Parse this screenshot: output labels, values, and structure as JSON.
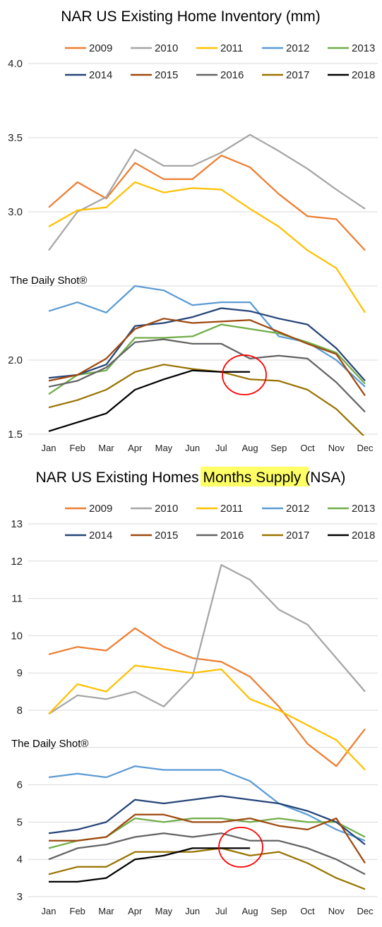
{
  "chart_data": [
    {
      "type": "line",
      "title": "NAR US Existing Home Inventory (mm)",
      "title_highlight": "",
      "watermark": "The Daily Shot®",
      "categories": [
        "Jan",
        "Feb",
        "Mar",
        "Apr",
        "May",
        "Jun",
        "Jul",
        "Aug",
        "Sep",
        "Oct",
        "Nov",
        "Dec"
      ],
      "ylim": [
        1.5,
        4.0
      ],
      "yticks": [
        "1.5",
        "2.0",
        "2.5",
        "3.0",
        "3.5",
        "4.0"
      ],
      "ytick_values": [
        1.5,
        2.0,
        2.5,
        3.0,
        3.5,
        4.0
      ],
      "visible_yticks": [
        true,
        true,
        false,
        true,
        true,
        true
      ],
      "legend_placement": "top",
      "grid": true,
      "annotation": "red circle around Jul-Aug",
      "series": [
        {
          "name": "2009",
          "color": "#ED7D31",
          "values": [
            3.03,
            3.2,
            3.09,
            3.33,
            3.22,
            3.22,
            3.38,
            3.3,
            3.12,
            2.97,
            2.95,
            2.74
          ]
        },
        {
          "name": "2010",
          "color": "#A5A5A5",
          "values": [
            2.74,
            3.0,
            3.1,
            3.42,
            3.31,
            3.31,
            3.4,
            3.52,
            3.41,
            3.29,
            3.15,
            3.02
          ]
        },
        {
          "name": "2011",
          "color": "#FFC000",
          "values": [
            2.9,
            3.01,
            3.03,
            3.2,
            3.13,
            3.16,
            3.15,
            3.02,
            2.9,
            2.74,
            2.62,
            2.32
          ]
        },
        {
          "name": "2012",
          "color": "#5B9BD5",
          "values": [
            2.33,
            2.39,
            2.32,
            2.5,
            2.47,
            2.37,
            2.39,
            2.39,
            2.16,
            2.12,
            2.0,
            1.82
          ]
        },
        {
          "name": "2013",
          "color": "#70AD47",
          "values": [
            1.77,
            1.9,
            1.93,
            2.15,
            2.15,
            2.16,
            2.24,
            2.21,
            2.18,
            2.12,
            2.05,
            1.84
          ]
        },
        {
          "name": "2014",
          "color": "#264478",
          "values": [
            1.88,
            1.9,
            1.97,
            2.23,
            2.25,
            2.29,
            2.35,
            2.33,
            2.28,
            2.24,
            2.08,
            1.86
          ]
        },
        {
          "name": "2015",
          "color": "#9E480E",
          "values": [
            1.86,
            1.9,
            2.01,
            2.21,
            2.28,
            2.25,
            2.26,
            2.27,
            2.19,
            2.11,
            2.04,
            1.76
          ]
        },
        {
          "name": "2016",
          "color": "#636363",
          "values": [
            1.82,
            1.86,
            1.95,
            2.12,
            2.14,
            2.11,
            2.11,
            2.01,
            2.03,
            2.01,
            1.85,
            1.65
          ]
        },
        {
          "name": "2017",
          "color": "#997300",
          "values": [
            1.68,
            1.73,
            1.8,
            1.92,
            1.97,
            1.94,
            1.92,
            1.87,
            1.86,
            1.8,
            1.67,
            1.48
          ]
        },
        {
          "name": "2018",
          "color": "#000000",
          "values": [
            1.52,
            1.58,
            1.64,
            1.8,
            1.87,
            1.93,
            1.92,
            1.92,
            null,
            null,
            null,
            null
          ]
        }
      ]
    },
    {
      "type": "line",
      "title": "NAR US Existing Homes ",
      "title_highlight": "Months Supply",
      "title_suffix": " (NSA)",
      "watermark": "The Daily Shot®",
      "categories": [
        "Jan",
        "Feb",
        "Mar",
        "Apr",
        "May",
        "Jun",
        "Jul",
        "Aug",
        "Sep",
        "Oct",
        "Nov",
        "Dec"
      ],
      "ylim": [
        3,
        13
      ],
      "yticks": [
        "3",
        "4",
        "5",
        "6",
        "7",
        "8",
        "9",
        "10",
        "11",
        "12",
        "13"
      ],
      "ytick_values": [
        3,
        4,
        5,
        6,
        7,
        8,
        9,
        10,
        11,
        12,
        13
      ],
      "visible_yticks": [
        true,
        true,
        true,
        true,
        false,
        true,
        true,
        true,
        true,
        true,
        true
      ],
      "legend_placement": "top",
      "grid": true,
      "annotation": "red circle around Jul-Aug",
      "series": [
        {
          "name": "2009",
          "color": "#ED7D31",
          "values": [
            9.5,
            9.7,
            9.6,
            10.2,
            9.7,
            9.4,
            9.3,
            8.9,
            8.1,
            7.1,
            6.5,
            7.5
          ]
        },
        {
          "name": "2010",
          "color": "#A5A5A5",
          "values": [
            7.9,
            8.4,
            8.3,
            8.5,
            8.1,
            8.9,
            11.9,
            11.5,
            10.7,
            10.3,
            9.4,
            8.5
          ]
        },
        {
          "name": "2011",
          "color": "#FFC000",
          "values": [
            7.9,
            8.7,
            8.5,
            9.2,
            9.1,
            9.0,
            9.1,
            8.3,
            8.0,
            7.6,
            7.2,
            6.4
          ]
        },
        {
          "name": "2012",
          "color": "#5B9BD5",
          "values": [
            6.2,
            6.3,
            6.2,
            6.5,
            6.4,
            6.4,
            6.4,
            6.1,
            5.5,
            5.2,
            4.8,
            4.5
          ]
        },
        {
          "name": "2013",
          "color": "#70AD47",
          "values": [
            4.3,
            4.5,
            4.6,
            5.1,
            5.0,
            5.1,
            5.1,
            5.0,
            5.1,
            5.0,
            5.0,
            4.6
          ]
        },
        {
          "name": "2014",
          "color": "#264478",
          "values": [
            4.7,
            4.8,
            5.0,
            5.6,
            5.5,
            5.6,
            5.7,
            5.6,
            5.5,
            5.3,
            5.0,
            4.4
          ]
        },
        {
          "name": "2015",
          "color": "#9E480E",
          "values": [
            4.5,
            4.5,
            4.6,
            5.2,
            5.2,
            5.0,
            5.0,
            5.1,
            4.9,
            4.8,
            5.1,
            3.9
          ]
        },
        {
          "name": "2016",
          "color": "#636363",
          "values": [
            4.0,
            4.3,
            4.4,
            4.6,
            4.7,
            4.6,
            4.7,
            4.5,
            4.5,
            4.3,
            4.0,
            3.6
          ]
        },
        {
          "name": "2017",
          "color": "#997300",
          "values": [
            3.6,
            3.8,
            3.8,
            4.2,
            4.2,
            4.2,
            4.3,
            4.1,
            4.2,
            3.9,
            3.5,
            3.2
          ]
        },
        {
          "name": "2018",
          "color": "#000000",
          "values": [
            3.4,
            3.4,
            3.5,
            4.0,
            4.1,
            4.3,
            4.3,
            4.3,
            null,
            null,
            null,
            null
          ]
        }
      ]
    }
  ]
}
